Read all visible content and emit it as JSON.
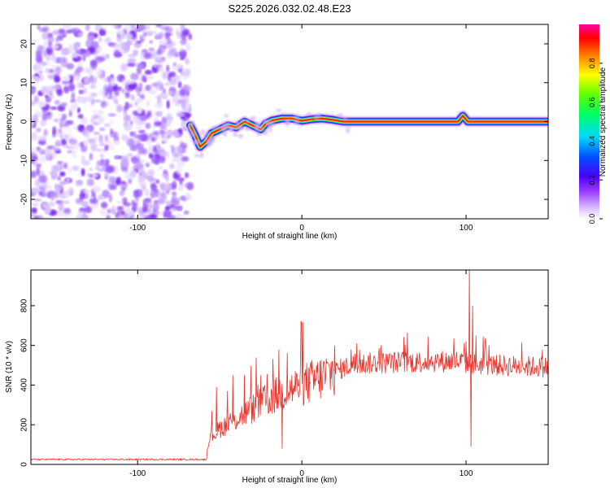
{
  "title": "S225.2026.032.02.48.E23",
  "colors": {
    "snr_line": "#e8342c",
    "axis": "#000000",
    "background": "#ffffff"
  },
  "chart_data": [
    {
      "type": "heatmap",
      "name": "spectrogram",
      "xlabel": "Height of straight line (km)",
      "ylabel": "Frequency (Hz)",
      "xlim": [
        -165,
        150
      ],
      "ylim": [
        -25,
        25
      ],
      "xticks": [
        -100,
        0,
        100
      ],
      "xtick_labels": [
        "-100",
        "0",
        "100"
      ],
      "yticks": [
        -20,
        -10,
        0,
        10,
        20
      ],
      "ytick_labels": [
        "-20",
        "-10",
        "0",
        "10",
        "20"
      ],
      "grid": false,
      "noise_region_km": [
        -165,
        -68
      ],
      "ridge_frequency": [
        [
          -68,
          -1.0
        ],
        [
          -65,
          -3.5
        ],
        [
          -62,
          -6.5
        ],
        [
          -58,
          -5.0
        ],
        [
          -55,
          -3.0
        ],
        [
          -50,
          -2.0
        ],
        [
          -45,
          -1.0
        ],
        [
          -40,
          -1.5
        ],
        [
          -35,
          0.0
        ],
        [
          -30,
          -1.0
        ],
        [
          -25,
          -2.0
        ],
        [
          -22,
          -0.5
        ],
        [
          -18,
          0.3
        ],
        [
          -12,
          0.8
        ],
        [
          -6,
          0.8
        ],
        [
          0,
          0.2
        ],
        [
          6,
          0.6
        ],
        [
          12,
          0.8
        ],
        [
          18,
          0.5
        ],
        [
          25,
          0.0
        ],
        [
          40,
          0.0
        ],
        [
          60,
          0.0
        ],
        [
          80,
          0.0
        ],
        [
          95,
          0.0
        ],
        [
          98,
          1.5
        ],
        [
          101,
          0.0
        ],
        [
          120,
          0.0
        ],
        [
          150,
          0.0
        ]
      ],
      "colorbar": {
        "label": "Normalized spectral amplitude",
        "range": [
          0,
          1
        ],
        "ticks": [
          0.0,
          0.2,
          0.4,
          0.6,
          0.8
        ],
        "tick_labels": [
          "0.0",
          "0.2",
          "0.4",
          "0.6",
          "0.8"
        ]
      }
    },
    {
      "type": "line",
      "name": "snr",
      "xlabel": "Height of straight line (km)",
      "ylabel": "SNR (10 * v/v)",
      "xlim": [
        -165,
        150
      ],
      "ylim": [
        0,
        980
      ],
      "xticks": [
        -100,
        0,
        100
      ],
      "xtick_labels": [
        "-100",
        "0",
        "100"
      ],
      "yticks": [
        0,
        200,
        400,
        600,
        800
      ],
      "ytick_labels": [
        "0",
        "200",
        "400",
        "600",
        "800"
      ],
      "grid": false,
      "baseline_segments": [
        [
          -165,
          25
        ],
        [
          -100,
          25
        ],
        [
          -58,
          25
        ],
        [
          -57,
          130
        ],
        [
          -50,
          180
        ],
        [
          -40,
          230
        ],
        [
          -30,
          280
        ],
        [
          -20,
          330
        ],
        [
          -10,
          370
        ],
        [
          0,
          400
        ],
        [
          10,
          430
        ],
        [
          20,
          470
        ],
        [
          30,
          500
        ],
        [
          40,
          510
        ],
        [
          60,
          515
        ],
        [
          80,
          520
        ],
        [
          95,
          520
        ],
        [
          105,
          505
        ],
        [
          120,
          500
        ],
        [
          150,
          490
        ]
      ],
      "spikes": [
        [
          -52,
          390
        ],
        [
          -42,
          450
        ],
        [
          -35,
          450
        ],
        [
          -25,
          450
        ],
        [
          -14,
          580
        ],
        [
          -12,
          80
        ],
        [
          -2,
          430
        ],
        [
          5,
          410
        ],
        [
          20,
          600
        ],
        [
          30,
          580
        ],
        [
          100,
          620
        ],
        [
          102,
          990
        ],
        [
          103,
          90
        ],
        [
          104,
          800
        ],
        [
          106,
          650
        ]
      ]
    }
  ]
}
